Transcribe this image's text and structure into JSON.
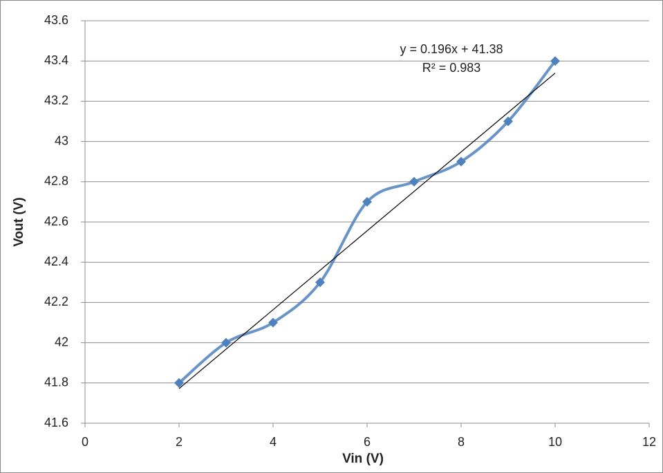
{
  "chart_data": {
    "type": "scatter",
    "x_label": "Vin (V)",
    "y_label": "Vout (V)",
    "x": [
      2,
      3,
      4,
      5,
      6,
      7,
      8,
      9,
      10
    ],
    "series": [
      {
        "color": "#4f81bd",
        "values": [
          41.8,
          42.0,
          42.1,
          42.3,
          42.7,
          42.8,
          42.9,
          43.1,
          43.4
        ]
      }
    ],
    "trendline": {
      "slope": 0.196,
      "intercept": 41.38,
      "color": "#000000",
      "equation": "y = 0.196x + 41.38",
      "r_squared": "R² = 0.983"
    },
    "xlim": [
      0,
      12
    ],
    "xticks": [
      0,
      2,
      4,
      6,
      8,
      10,
      12
    ],
    "ylim": [
      41.6,
      43.6
    ],
    "yticks": [
      41.6,
      41.8,
      42,
      42.2,
      42.4,
      42.6,
      42.8,
      43,
      43.2,
      43.4,
      43.6
    ],
    "grid": true
  }
}
